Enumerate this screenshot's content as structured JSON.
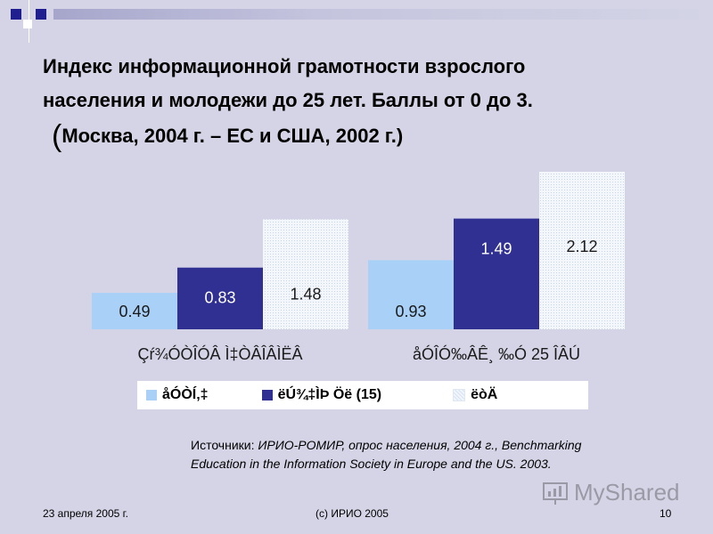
{
  "slide": {
    "title_line1": "Индекс информационной грамотности взрослого",
    "title_line2": "населения и молодежи до 25 лет. Баллы от 0 до 3.",
    "subtitle_open": "(",
    "subtitle_text": "Москва, 2004 г. – ЕС и США, 2002 г.)",
    "sources_label": "Источники: ",
    "sources_text": "ИРИО-РОМИР, опрос населения, 2004 г., Benchmarking Education in the Information Society in Europe and the US. 2003.",
    "footer_date": "23 апреля 2005 г.",
    "footer_copyright": "(c) ИРИО 2005",
    "page_number": "10",
    "watermark": "MyShared"
  },
  "chart_data": {
    "type": "bar",
    "title": "Индекс информационной грамотности взрослого населения и молодежи до 25 лет. Баллы от 0 до 3.",
    "categories": [
      "Çŕ¾ÓÒÎÓÂ Ì‡ÒÂÎÂÌËÂ",
      "åÓÎÓ‰ÂÊ¸ ‰Ó 25 ÎÂÚ"
    ],
    "series": [
      {
        "name": "åÓÒÍ‚‡",
        "values": [
          0.49,
          0.93
        ],
        "color": "#a9d1f7",
        "label_color": "#1a1a1a"
      },
      {
        "name": "ëÚ¾‡ÌÞ Öë (15)",
        "values": [
          0.83,
          1.49
        ],
        "color": "#303093",
        "label_color": "#ffffff"
      },
      {
        "name": "ëòÄ",
        "values": [
          1.48,
          2.12
        ],
        "color": "#eef3fa",
        "label_color": "#1a1a1a"
      }
    ],
    "ylim": [
      0,
      2.3
    ],
    "grid": false,
    "legend_position": "bottom",
    "xlabel": "",
    "ylabel": ""
  }
}
